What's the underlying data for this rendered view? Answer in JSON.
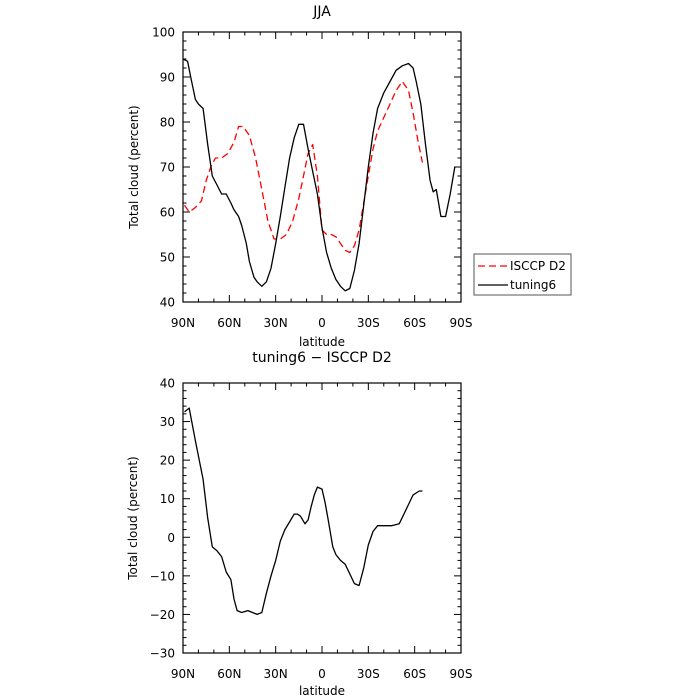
{
  "chart_data": [
    {
      "type": "line",
      "title": "JJA",
      "xlabel": "latitude",
      "ylabel": "Total cloud (percent)",
      "xlim": [
        90,
        -90
      ],
      "ylim": [
        40,
        100
      ],
      "xticks": [
        90,
        60,
        30,
        0,
        -30,
        -60,
        -90
      ],
      "xtick_labels": [
        "90N",
        "60N",
        "30N",
        "0",
        "30S",
        "60S",
        "90S"
      ],
      "yticks": [
        40,
        50,
        60,
        70,
        80,
        90,
        100
      ],
      "ytick_labels": [
        "40",
        "50",
        "60",
        "70",
        "80",
        "90",
        "100"
      ],
      "legend": "right",
      "series": [
        {
          "name": "ISCCP D2",
          "color": "#ff0000",
          "style": "dashed",
          "x": [
            89,
            86,
            82,
            78,
            75,
            72,
            69,
            65,
            61,
            57,
            54,
            51,
            47,
            43,
            39,
            35,
            31,
            27,
            23,
            19,
            15,
            12,
            9,
            6,
            3,
            0,
            -3,
            -6,
            -9,
            -12,
            -15,
            -18,
            -21,
            -24,
            -27,
            -30,
            -33,
            -36,
            -40,
            -44,
            -48,
            -52,
            -56,
            -59,
            -62,
            -65
          ],
          "y": [
            61.5,
            60.0,
            61.0,
            62.5,
            67.0,
            70.0,
            72.0,
            72.0,
            73.0,
            75.5,
            79.0,
            79.0,
            77.0,
            72.0,
            65.0,
            58.0,
            54.0,
            54.0,
            55.0,
            58.0,
            63.0,
            68.0,
            73.0,
            75.0,
            68.0,
            56.0,
            55.0,
            55.0,
            54.5,
            53.0,
            51.5,
            51.0,
            52.5,
            56.0,
            62.0,
            68.0,
            74.0,
            78.0,
            81.0,
            84.0,
            87.0,
            89.0,
            87.0,
            82.0,
            76.0,
            71.0
          ]
        },
        {
          "name": "tuning6",
          "color": "#000000",
          "style": "solid",
          "x": [
            90,
            87,
            85,
            82,
            80,
            77,
            74,
            71,
            68,
            65,
            62,
            59,
            57,
            54,
            52,
            49,
            47,
            44,
            42,
            39,
            36,
            33,
            30,
            27,
            24,
            21,
            18,
            15,
            12,
            9,
            6,
            3,
            0,
            -3,
            -6,
            -9,
            -12,
            -15,
            -18,
            -21,
            -24,
            -27,
            -30,
            -33,
            -36,
            -40,
            -44,
            -48,
            -52,
            -56,
            -59,
            -61,
            -64,
            -67,
            -70,
            -72,
            -74,
            -77,
            -80,
            -83,
            -86
          ],
          "y": [
            94.0,
            93.5,
            90.0,
            85.0,
            84.0,
            83.0,
            75.0,
            68.0,
            66.0,
            64.0,
            64.0,
            62.0,
            60.5,
            59.0,
            57.0,
            53.0,
            49.0,
            45.5,
            44.5,
            43.5,
            44.5,
            47.5,
            53.0,
            59.0,
            65.5,
            72.0,
            76.5,
            79.5,
            79.5,
            74.0,
            69.0,
            64.0,
            56.5,
            51.0,
            47.5,
            45.0,
            43.5,
            42.5,
            43.0,
            47.0,
            53.0,
            61.5,
            70.0,
            77.5,
            83.0,
            86.5,
            89.0,
            91.5,
            92.5,
            93.0,
            92.0,
            89.0,
            84.0,
            75.0,
            67.0,
            64.5,
            65.0,
            59.0,
            59.0,
            64.0,
            70.0
          ]
        }
      ]
    },
    {
      "type": "line",
      "title": "tuning6 − ISCCP D2",
      "xlabel": "latitude",
      "ylabel": "Total cloud (percent)",
      "xlim": [
        90,
        -90
      ],
      "ylim": [
        -30,
        40
      ],
      "xticks": [
        90,
        60,
        30,
        0,
        -30,
        -60,
        -90
      ],
      "xtick_labels": [
        "90N",
        "60N",
        "30N",
        "0",
        "30S",
        "60S",
        "90S"
      ],
      "yticks": [
        -30,
        -20,
        -10,
        0,
        10,
        20,
        30,
        40
      ],
      "ytick_labels": [
        "−30",
        "−20",
        "−10",
        "0",
        "10",
        "20",
        "30",
        "40"
      ],
      "series": [
        {
          "color": "#000000",
          "style": "solid",
          "x": [
            89,
            86,
            82,
            77,
            74,
            71,
            68,
            65,
            62,
            59,
            57,
            55,
            52,
            48,
            45,
            42,
            39,
            36,
            33,
            30,
            27,
            24,
            21,
            18,
            16,
            14,
            11,
            9,
            7,
            5,
            3,
            0,
            -2,
            -4,
            -7,
            -9,
            -12,
            -15,
            -18,
            -21,
            -24,
            -27,
            -30,
            -33,
            -36,
            -40,
            -45,
            -50,
            -53,
            -56,
            -59,
            -63,
            -65
          ],
          "y": [
            32.5,
            33.5,
            25.0,
            15.0,
            5.0,
            -2.5,
            -3.5,
            -5.0,
            -9.0,
            -11.0,
            -16.0,
            -19.0,
            -19.5,
            -19.0,
            -19.5,
            -20.0,
            -19.5,
            -14.5,
            -10.0,
            -6.0,
            -1.0,
            2.0,
            4.0,
            6.0,
            6.0,
            5.5,
            3.5,
            4.5,
            8.0,
            11.0,
            13.0,
            12.5,
            9.0,
            4.5,
            -2.5,
            -4.5,
            -6.0,
            -7.0,
            -9.5,
            -12.0,
            -12.5,
            -8.0,
            -2.0,
            1.5,
            3.0,
            3.0,
            3.0,
            3.5,
            6.0,
            8.5,
            11.0,
            12.0,
            12.0
          ]
        }
      ]
    }
  ]
}
